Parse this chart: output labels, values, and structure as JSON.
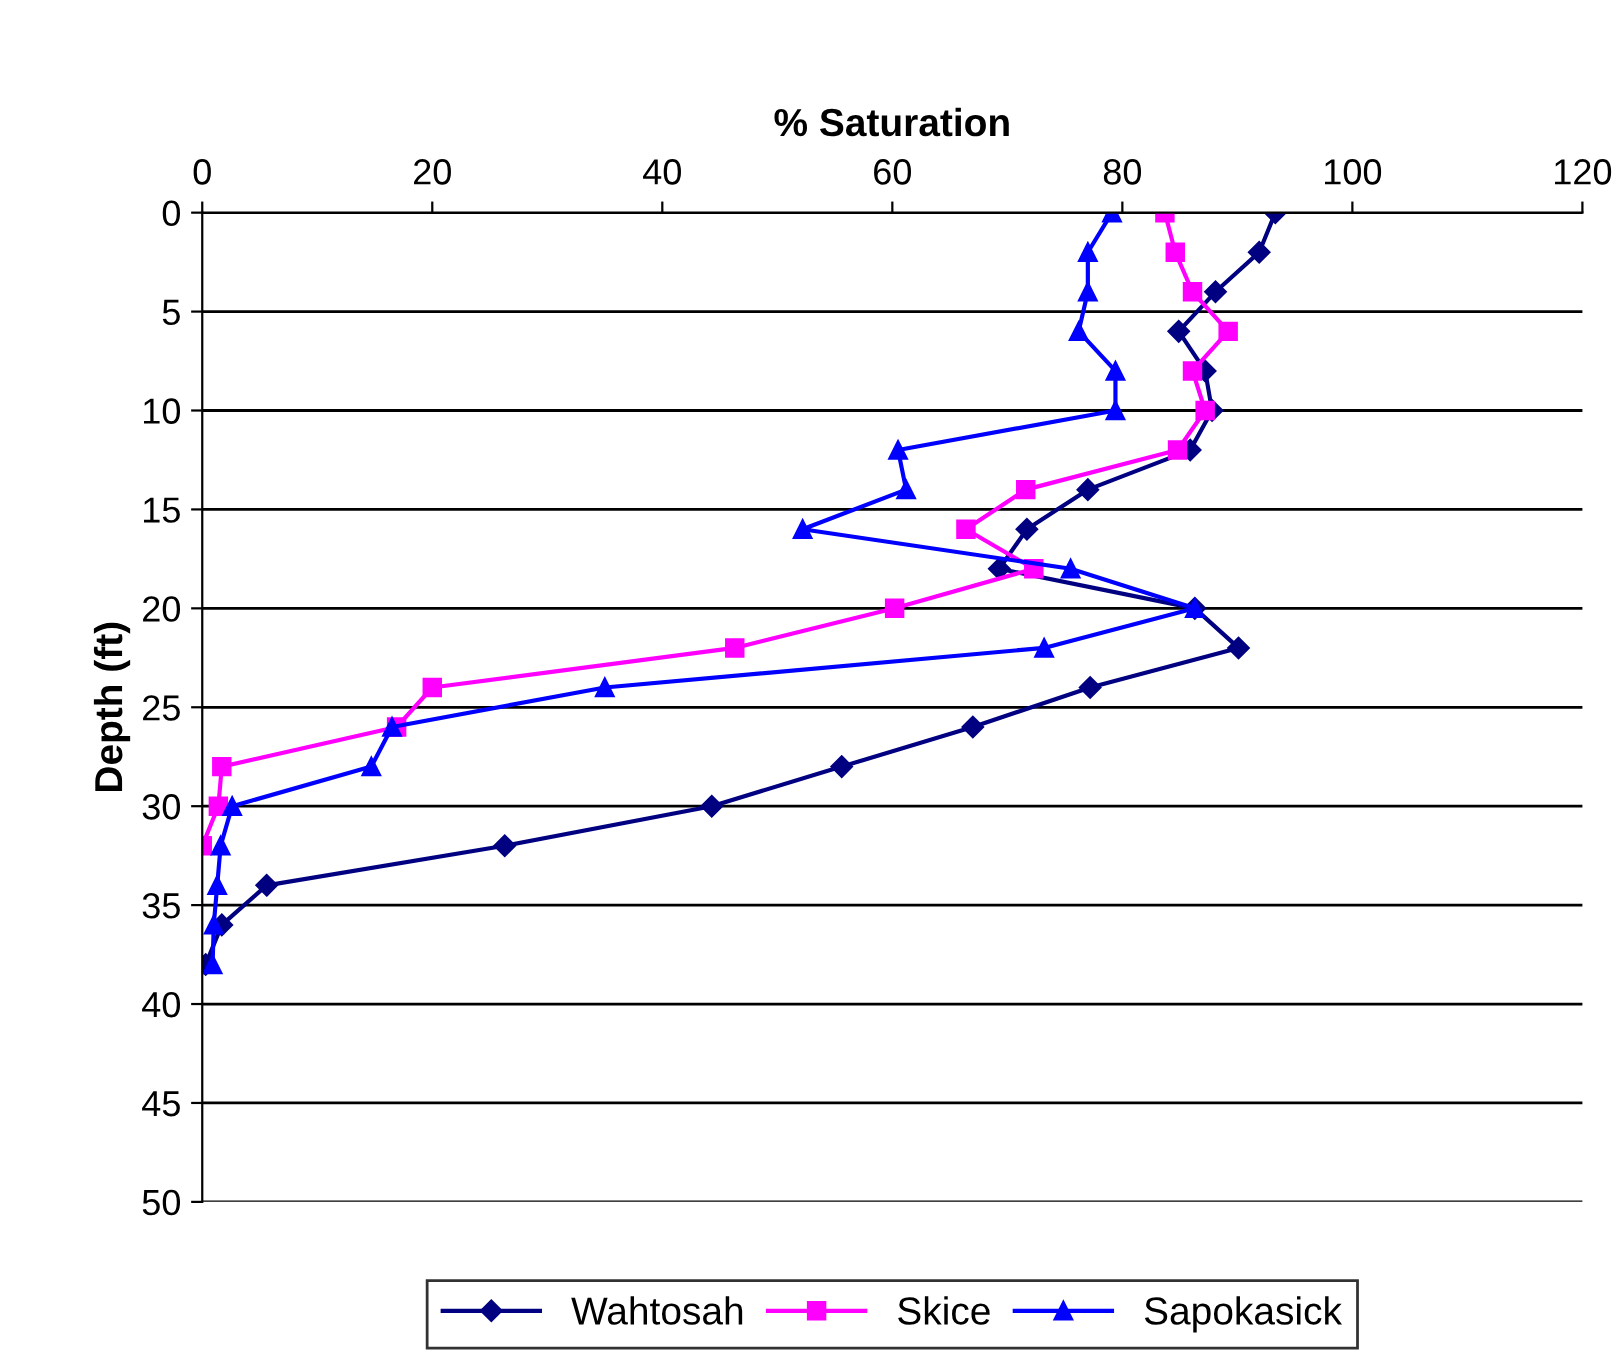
{
  "chart_data": {
    "type": "line",
    "xlabel": "% Saturation",
    "ylabel": "Depth (ft)",
    "xlim": [
      0,
      120
    ],
    "xticks": [
      0,
      20,
      40,
      60,
      80,
      100,
      120
    ],
    "ylim": [
      50,
      0
    ],
    "yticks": [
      0,
      5,
      10,
      15,
      20,
      25,
      30,
      35,
      40,
      45,
      50
    ],
    "grid": "y",
    "legend": "bottom",
    "line_style": "solid",
    "series": [
      {
        "name": "Wahtosah",
        "color": "#000080",
        "marker": "diamond",
        "x": [
          93.3,
          91.9,
          88.1,
          84.9,
          87.2,
          87.8,
          85.9,
          77.0,
          71.7,
          69.3,
          86.3,
          90.1,
          77.2,
          67.0,
          55.6,
          44.3,
          26.3,
          5.6,
          1.7,
          0.3
        ],
        "values": [
          0,
          2,
          4,
          6,
          8,
          10,
          12,
          14,
          16,
          18,
          20,
          22,
          24,
          26,
          28,
          30,
          32,
          34,
          36,
          38
        ]
      },
      {
        "name": "Skice",
        "color": "#ff00ff",
        "marker": "square",
        "x": [
          83.7,
          84.6,
          86.1,
          89.2,
          86.1,
          87.2,
          84.8,
          71.6,
          66.4,
          72.3,
          60.2,
          46.3,
          20.0,
          16.9,
          1.7,
          1.4,
          0.0
        ],
        "values": [
          0,
          2,
          4,
          6,
          8,
          10,
          12,
          14,
          16,
          18,
          20,
          22,
          24,
          26,
          28,
          30,
          32
        ]
      },
      {
        "name": "Sapokasick",
        "color": "#0000ff",
        "marker": "triangle",
        "x": [
          79.1,
          77.0,
          77.0,
          76.2,
          79.4,
          79.4,
          60.5,
          61.2,
          52.2,
          75.5,
          86.3,
          73.2,
          35.0,
          16.5,
          14.7,
          2.6,
          1.6,
          1.3,
          1.0,
          0.9
        ],
        "values": [
          0,
          2,
          4,
          6,
          8,
          10,
          12,
          14,
          16,
          18,
          20,
          22,
          24,
          26,
          28,
          30,
          32,
          34,
          36,
          38
        ]
      }
    ]
  }
}
